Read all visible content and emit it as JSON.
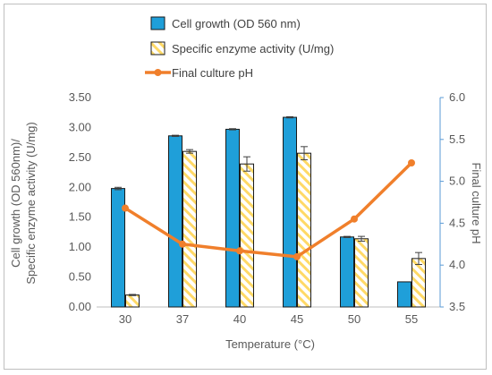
{
  "chart_data": {
    "type": "bar",
    "xlabel": "Temperature (°C)",
    "ylabel_line1": "Cell growth (OD 560nm)/",
    "ylabel_line2": "Specific enzyme activity (U/mg)",
    "y2label": "Final culture pH",
    "categories": [
      "30",
      "37",
      "40",
      "45",
      "50",
      "55"
    ],
    "ylim": [
      0,
      3.5
    ],
    "y_ticks": [
      "0.00",
      "0.50",
      "1.00",
      "1.50",
      "2.00",
      "2.50",
      "3.00",
      "3.50"
    ],
    "y2lim": [
      3.5,
      6.0
    ],
    "y2_ticks": [
      "3.5",
      "4.0",
      "4.5",
      "5.0",
      "5.5",
      "6.0"
    ],
    "grid": false,
    "legend_placement": "top",
    "series": [
      {
        "name": "Cell growth (OD 560 nm)",
        "kind": "bar",
        "axis": "left",
        "color": "#1f9fd9",
        "values": [
          1.98,
          2.86,
          2.97,
          3.17,
          1.17,
          0.42
        ],
        "errors": [
          0.02,
          0.01,
          0.01,
          0.01,
          0.01,
          0.0
        ]
      },
      {
        "name": "Specific enzyme activity (U/mg)",
        "kind": "bar",
        "axis": "left",
        "color": "#ffd966",
        "values": [
          0.2,
          2.6,
          2.39,
          2.57,
          1.14,
          0.81
        ],
        "errors": [
          0.01,
          0.03,
          0.12,
          0.11,
          0.04,
          0.1
        ]
      },
      {
        "name": "Final culture pH",
        "kind": "line",
        "axis": "right",
        "color": "#f07f2b",
        "values": [
          4.68,
          4.25,
          4.17,
          4.1,
          4.55,
          5.22
        ]
      }
    ]
  }
}
